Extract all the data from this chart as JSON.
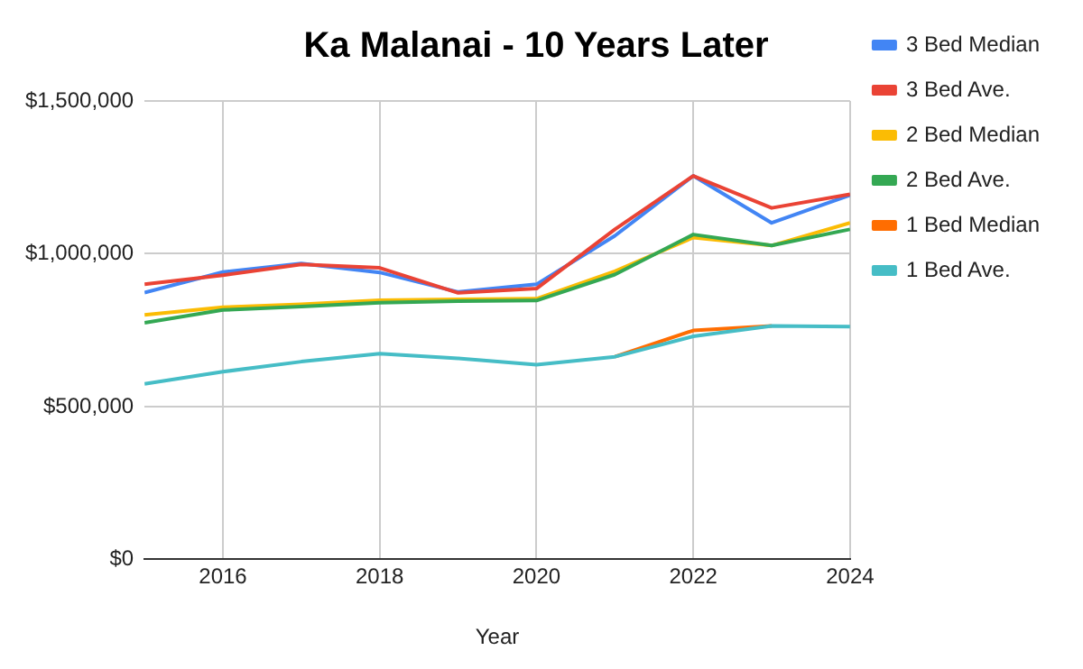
{
  "chart_data": {
    "type": "line",
    "title": "Ka Malanai - 10 Years Later",
    "xlabel": "Year",
    "x": [
      2015,
      2016,
      2017,
      2018,
      2019,
      2020,
      2021,
      2022,
      2023,
      2024
    ],
    "series": [
      {
        "name": "3 Bed Median",
        "color": "#4285f4",
        "values": [
          873000,
          940000,
          968000,
          939000,
          875000,
          900000,
          1059000,
          1255000,
          1101000,
          1192000
        ]
      },
      {
        "name": "3 Bed Ave.",
        "color": "#ea4335",
        "values": [
          900000,
          930000,
          965000,
          954000,
          872000,
          886000,
          1080000,
          1255000,
          1150000,
          1195000
        ]
      },
      {
        "name": "2 Bed Median",
        "color": "#fbbc04",
        "values": [
          800000,
          825000,
          835000,
          848000,
          851000,
          853000,
          943000,
          1053000,
          1027000,
          1101000
        ]
      },
      {
        "name": "2 Bed Ave.",
        "color": "#34a853",
        "values": [
          774000,
          816000,
          827000,
          840000,
          845000,
          847000,
          932000,
          1063000,
          1027000,
          1080000
        ]
      },
      {
        "name": "1 Bed Median",
        "color": "#ff6d01",
        "values": [
          null,
          null,
          null,
          null,
          null,
          null,
          663000,
          749000,
          764000,
          null
        ]
      },
      {
        "name": "1 Bed Ave.",
        "color": "#46bdc6",
        "values": [
          574000,
          614000,
          647000,
          673000,
          658000,
          637000,
          663000,
          730000,
          764000,
          762000
        ]
      }
    ],
    "xlim": [
      2015,
      2024
    ],
    "xticks": [
      2016,
      2018,
      2020,
      2022,
      2024
    ],
    "ylim": [
      0,
      1500000
    ],
    "yticks": [
      {
        "value": 0,
        "label": "$0"
      },
      {
        "value": 500000,
        "label": "$500,000"
      },
      {
        "value": 1000000,
        "label": "$1,000,000"
      },
      {
        "value": 1500000,
        "label": "$1,500,000"
      }
    ],
    "grid": true,
    "legend": "right",
    "marker": "none",
    "line_style": "solid"
  }
}
